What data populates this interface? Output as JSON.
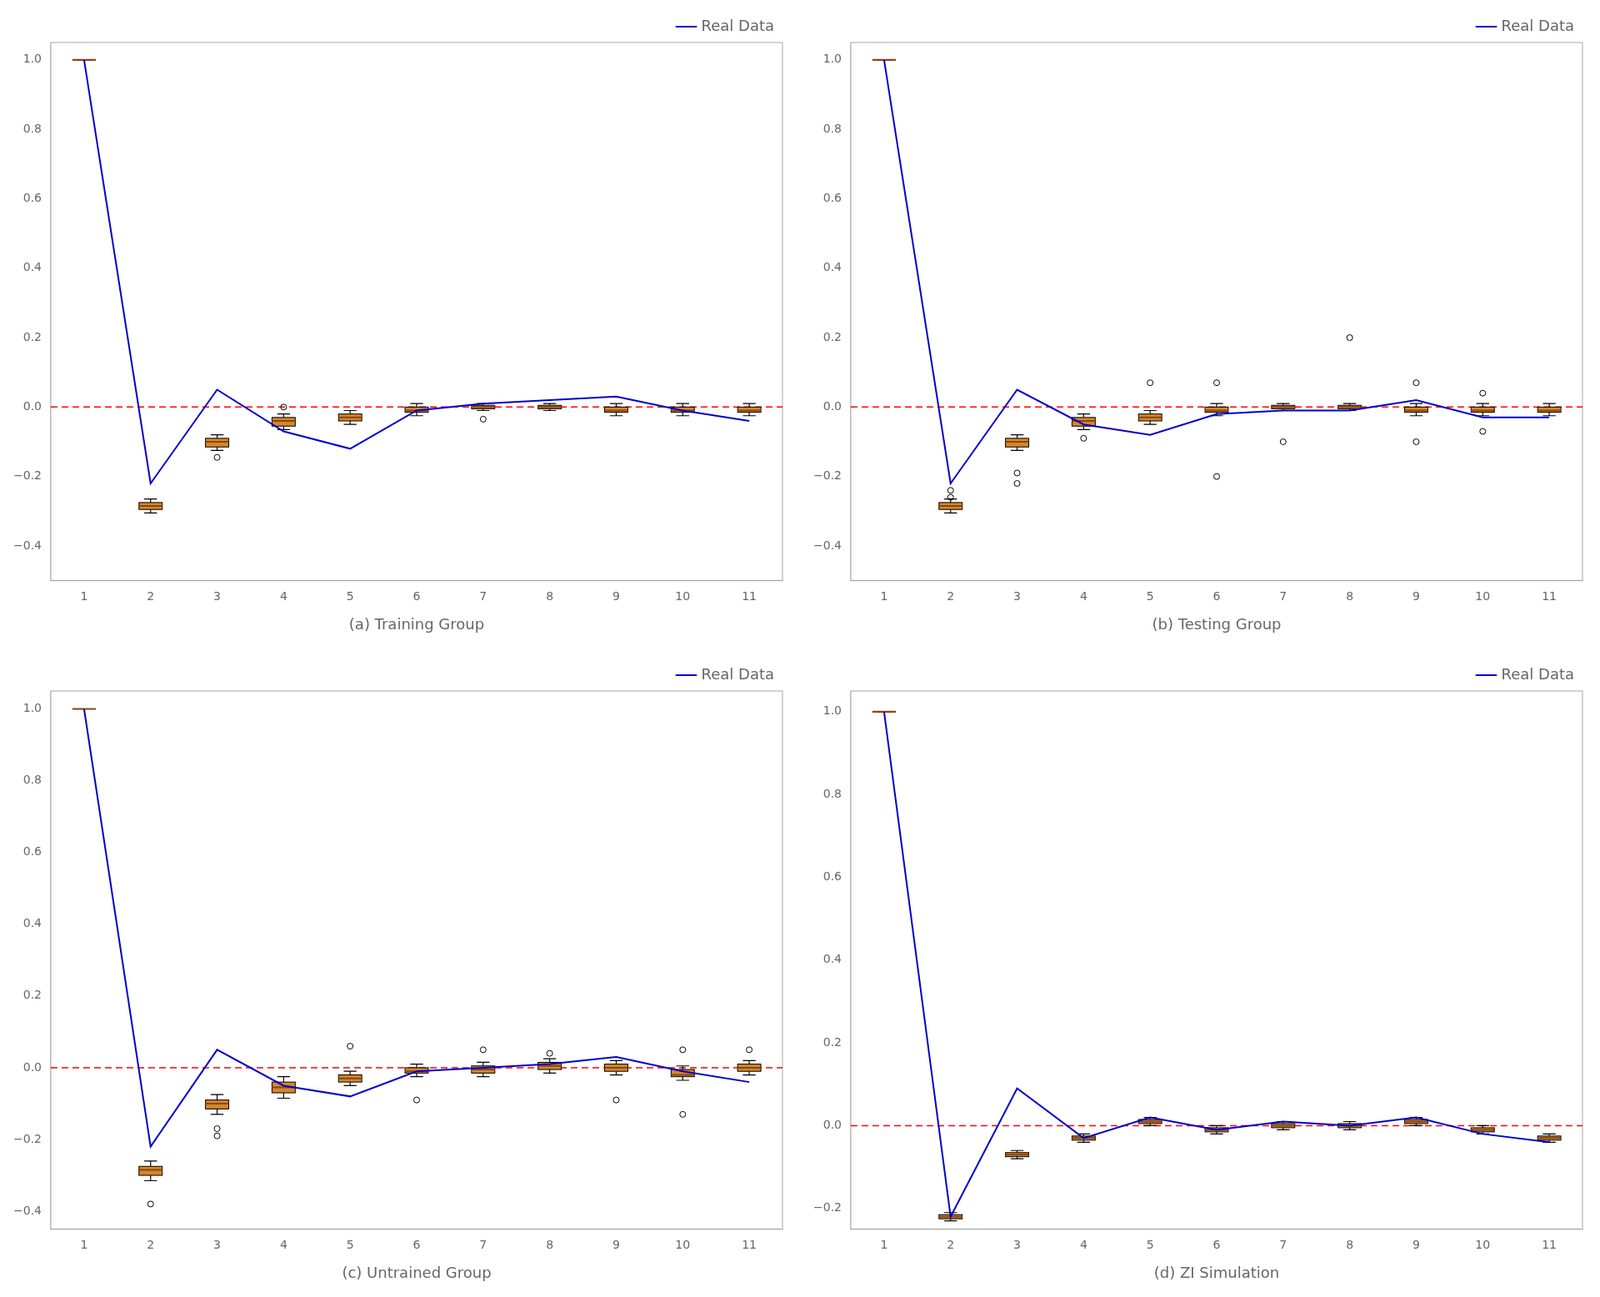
{
  "chart_data": [
    {
      "type": "box",
      "xlabel": "(a) Training Group",
      "x": [
        1,
        2,
        3,
        4,
        5,
        6,
        7,
        8,
        9,
        10,
        11
      ],
      "xlim": [
        0.5,
        11.5
      ],
      "xticks": [
        1,
        2,
        3,
        4,
        5,
        6,
        7,
        8,
        9,
        10,
        11
      ],
      "ylim": [
        -0.5,
        1.05
      ],
      "yticks": [
        {
          "value": -0.4,
          "label": "−0.4"
        },
        {
          "value": -0.2,
          "label": "−0.2"
        },
        {
          "value": 0,
          "label": "0.0"
        },
        0.2,
        0.4,
        0.6,
        0.8,
        {
          "value": 1,
          "label": "1.0"
        }
      ],
      "grid": false,
      "legend": "upper right",
      "reference_line": {
        "y": 0,
        "color": "#ff0000",
        "line_style": "dashed"
      },
      "series": [
        {
          "type": "box",
          "color": "#d4872a",
          "medians": [
            1.0,
            -0.285,
            -0.1,
            -0.04,
            -0.03,
            -0.01,
            0.0,
            0.0,
            -0.01,
            -0.01,
            -0.01
          ],
          "q1": [
            1.0,
            -0.295,
            -0.115,
            -0.055,
            -0.04,
            -0.015,
            -0.005,
            -0.005,
            -0.015,
            -0.015,
            -0.015
          ],
          "q3": [
            1.0,
            -0.275,
            -0.09,
            -0.03,
            -0.02,
            0.0,
            0.005,
            0.005,
            0.0,
            0.0,
            0.0
          ],
          "whislo": [
            1.0,
            -0.305,
            -0.125,
            -0.065,
            -0.05,
            -0.025,
            -0.01,
            -0.01,
            -0.025,
            -0.025,
            -0.025
          ],
          "whishi": [
            1.0,
            -0.265,
            -0.08,
            -0.02,
            -0.01,
            0.01,
            0.01,
            0.01,
            0.01,
            0.01,
            0.01
          ]
        },
        {
          "type": "scatter",
          "marker": "circle",
          "color": "#000000",
          "x": [
            3,
            4,
            7
          ],
          "y": [
            -0.145,
            0.0,
            -0.035
          ]
        },
        {
          "type": "line",
          "name": "Real Data",
          "color": "#0000cc",
          "line_style": "solid",
          "values": [
            1.0,
            -0.22,
            0.05,
            -0.07,
            -0.12,
            -0.01,
            0.01,
            0.02,
            0.03,
            -0.01,
            -0.04
          ]
        }
      ]
    },
    {
      "type": "box",
      "xlabel": "(b) Testing Group",
      "x": [
        1,
        2,
        3,
        4,
        5,
        6,
        7,
        8,
        9,
        10,
        11
      ],
      "xlim": [
        0.5,
        11.5
      ],
      "xticks": [
        1,
        2,
        3,
        4,
        5,
        6,
        7,
        8,
        9,
        10,
        11
      ],
      "ylim": [
        -0.5,
        1.05
      ],
      "yticks": [
        {
          "value": -0.4,
          "label": "−0.4"
        },
        {
          "value": -0.2,
          "label": "−0.2"
        },
        {
          "value": 0,
          "label": "0.0"
        },
        0.2,
        0.4,
        0.6,
        0.8,
        {
          "value": 1,
          "label": "1.0"
        }
      ],
      "grid": false,
      "legend": "upper right",
      "reference_line": {
        "y": 0,
        "color": "#ff0000",
        "line_style": "dashed"
      },
      "series": [
        {
          "type": "box",
          "color": "#d4872a",
          "medians": [
            1.0,
            -0.285,
            -0.1,
            -0.04,
            -0.03,
            -0.01,
            0.0,
            0.0,
            -0.01,
            -0.01,
            -0.01
          ],
          "q1": [
            1.0,
            -0.295,
            -0.115,
            -0.055,
            -0.04,
            -0.015,
            -0.005,
            -0.005,
            -0.015,
            -0.015,
            -0.015
          ],
          "q3": [
            1.0,
            -0.275,
            -0.09,
            -0.03,
            -0.02,
            0.0,
            0.005,
            0.005,
            0.0,
            0.0,
            0.0
          ],
          "whislo": [
            1.0,
            -0.305,
            -0.125,
            -0.065,
            -0.05,
            -0.025,
            -0.01,
            -0.01,
            -0.025,
            -0.025,
            -0.025
          ],
          "whishi": [
            1.0,
            -0.265,
            -0.08,
            -0.02,
            -0.01,
            0.01,
            0.01,
            0.01,
            0.01,
            0.01,
            0.01
          ]
        },
        {
          "type": "scatter",
          "marker": "circle",
          "color": "#000000",
          "x": [
            2,
            2,
            3,
            3,
            4,
            5,
            6,
            6,
            7,
            8,
            9,
            9,
            10,
            10
          ],
          "y": [
            -0.24,
            -0.26,
            -0.19,
            -0.22,
            -0.09,
            0.07,
            0.07,
            -0.2,
            -0.1,
            0.2,
            0.07,
            -0.1,
            0.04,
            -0.07
          ]
        },
        {
          "type": "line",
          "name": "Real Data",
          "color": "#0000cc",
          "line_style": "solid",
          "values": [
            1.0,
            -0.22,
            0.05,
            -0.05,
            -0.08,
            -0.02,
            -0.01,
            -0.01,
            0.02,
            -0.03,
            -0.03
          ]
        }
      ]
    },
    {
      "type": "box",
      "xlabel": "(c) Untrained Group",
      "x": [
        1,
        2,
        3,
        4,
        5,
        6,
        7,
        8,
        9,
        10,
        11
      ],
      "xlim": [
        0.5,
        11.5
      ],
      "xticks": [
        1,
        2,
        3,
        4,
        5,
        6,
        7,
        8,
        9,
        10,
        11
      ],
      "ylim": [
        -0.45,
        1.05
      ],
      "yticks": [
        {
          "value": -0.4,
          "label": "−0.4"
        },
        {
          "value": -0.2,
          "label": "−0.2"
        },
        {
          "value": 0,
          "label": "0.0"
        },
        0.2,
        0.4,
        0.6,
        0.8,
        {
          "value": 1,
          "label": "1.0"
        }
      ],
      "grid": false,
      "legend": "upper right",
      "reference_line": {
        "y": 0,
        "color": "#ff0000",
        "line_style": "dashed"
      },
      "series": [
        {
          "type": "box",
          "color": "#d4872a",
          "medians": [
            1.0,
            -0.285,
            -0.1,
            -0.055,
            -0.03,
            -0.01,
            -0.005,
            0.005,
            0.0,
            -0.02,
            0.0
          ],
          "q1": [
            1.0,
            -0.3,
            -0.115,
            -0.07,
            -0.04,
            -0.015,
            -0.015,
            -0.005,
            -0.01,
            -0.025,
            -0.01
          ],
          "q3": [
            1.0,
            -0.275,
            -0.09,
            -0.04,
            -0.02,
            0.0,
            0.005,
            0.015,
            0.01,
            -0.005,
            0.01
          ],
          "whislo": [
            1.0,
            -0.315,
            -0.13,
            -0.085,
            -0.05,
            -0.025,
            -0.025,
            -0.015,
            -0.02,
            -0.035,
            -0.02
          ],
          "whishi": [
            1.0,
            -0.26,
            -0.075,
            -0.025,
            -0.01,
            0.01,
            0.015,
            0.025,
            0.02,
            0.005,
            0.02
          ]
        },
        {
          "type": "scatter",
          "marker": "circle",
          "color": "#000000",
          "x": [
            2,
            3,
            3,
            5,
            6,
            7,
            8,
            9,
            10,
            10,
            11
          ],
          "y": [
            -0.38,
            -0.19,
            -0.17,
            0.06,
            -0.09,
            0.05,
            0.04,
            -0.09,
            -0.13,
            0.05,
            0.05
          ]
        },
        {
          "type": "line",
          "name": "Real Data",
          "color": "#0000cc",
          "line_style": "solid",
          "values": [
            1.0,
            -0.22,
            0.05,
            -0.05,
            -0.08,
            -0.01,
            0.0,
            0.01,
            0.03,
            -0.01,
            -0.04
          ]
        }
      ]
    },
    {
      "type": "box",
      "xlabel": "(d) ZI Simulation",
      "x": [
        1,
        2,
        3,
        4,
        5,
        6,
        7,
        8,
        9,
        10,
        11
      ],
      "xlim": [
        0.5,
        11.5
      ],
      "xticks": [
        1,
        2,
        3,
        4,
        5,
        6,
        7,
        8,
        9,
        10,
        11
      ],
      "ylim": [
        -0.25,
        1.05
      ],
      "yticks": [
        {
          "value": -0.2,
          "label": "−0.2"
        },
        {
          "value": 0,
          "label": "0.0"
        },
        0.2,
        0.4,
        0.6,
        0.8,
        {
          "value": 1,
          "label": "1.0"
        }
      ],
      "grid": false,
      "legend": "upper right",
      "reference_line": {
        "y": 0,
        "color": "#ff0000",
        "line_style": "dashed"
      },
      "series": [
        {
          "type": "box",
          "color": "#d4872a",
          "medians": [
            1.0,
            -0.22,
            -0.07,
            -0.03,
            0.01,
            -0.01,
            0.0,
            0.0,
            0.01,
            -0.01,
            -0.03
          ],
          "q1": [
            1.0,
            -0.225,
            -0.075,
            -0.035,
            0.005,
            -0.015,
            -0.005,
            -0.005,
            0.005,
            -0.015,
            -0.035
          ],
          "q3": [
            1.0,
            -0.215,
            -0.065,
            -0.025,
            0.015,
            -0.005,
            0.005,
            0.005,
            0.015,
            -0.005,
            -0.025
          ],
          "whislo": [
            1.0,
            -0.23,
            -0.08,
            -0.04,
            0.0,
            -0.02,
            -0.01,
            -0.01,
            0.0,
            -0.02,
            -0.04
          ],
          "whishi": [
            1.0,
            -0.21,
            -0.06,
            -0.02,
            0.02,
            0.0,
            0.01,
            0.01,
            0.02,
            0.0,
            -0.02
          ]
        },
        {
          "type": "line",
          "name": "Real Data",
          "color": "#0000cc",
          "line_style": "solid",
          "values": [
            1.0,
            -0.22,
            0.09,
            -0.03,
            0.02,
            -0.01,
            0.01,
            0.0,
            0.02,
            -0.02,
            -0.04
          ]
        }
      ]
    }
  ]
}
